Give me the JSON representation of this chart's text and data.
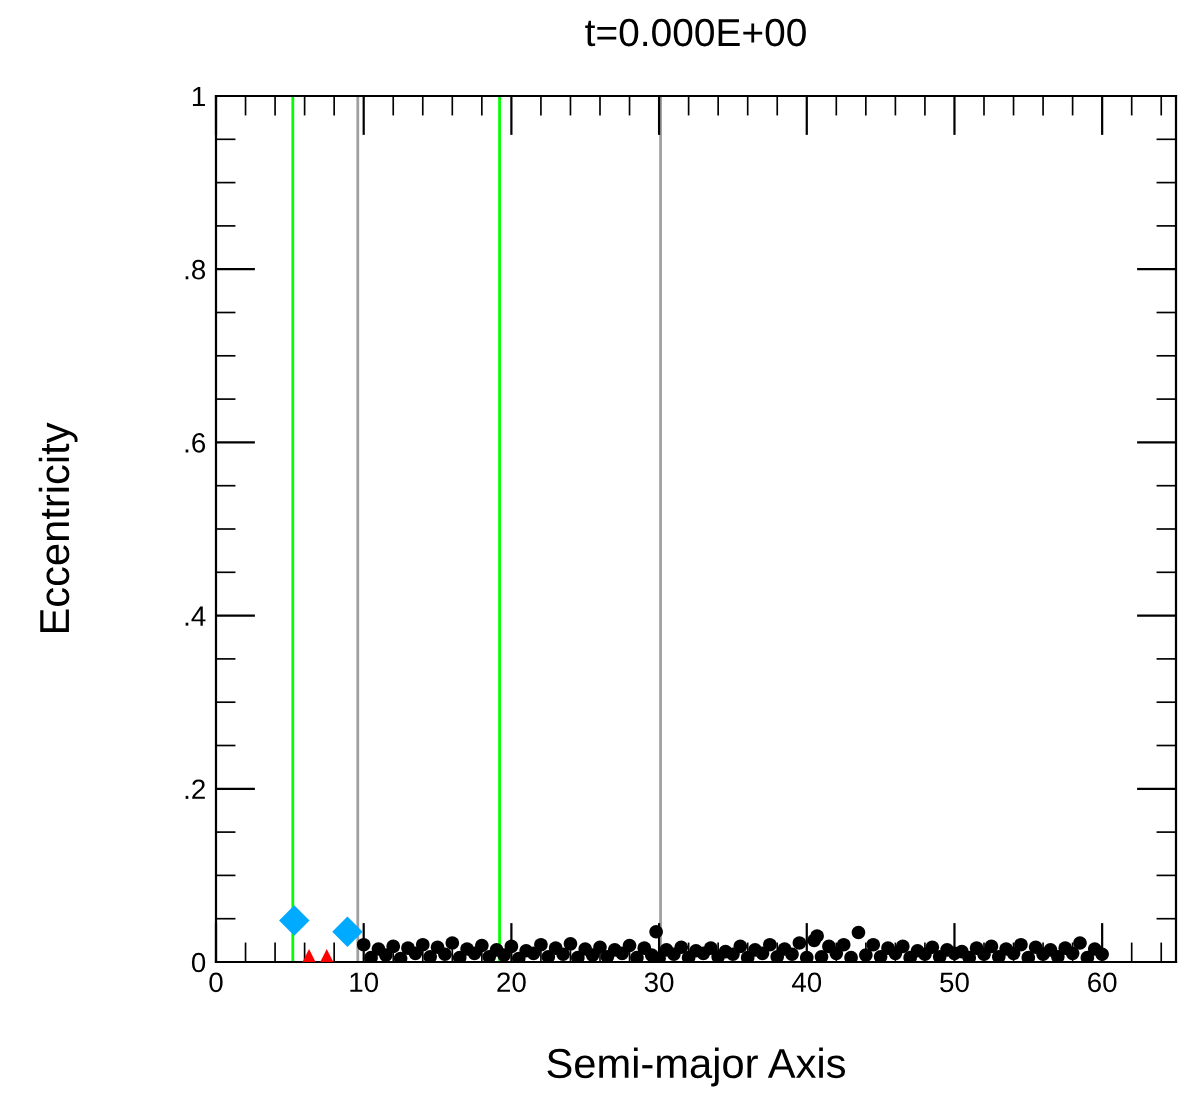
{
  "chart_data": {
    "type": "scatter",
    "title": "t=0.000E+00",
    "xlabel": "Semi-major Axis",
    "ylabel": "Eccentricity",
    "xlim": [
      0,
      65
    ],
    "ylim": [
      0,
      1
    ],
    "xticks": [
      0,
      {
        "value": 2,
        "label": null
      },
      {
        "value": 4,
        "label": null
      },
      {
        "value": 6,
        "label": null
      },
      {
        "value": 8,
        "label": null
      },
      10,
      {
        "value": 12,
        "label": null
      },
      {
        "value": 14,
        "label": null
      },
      {
        "value": 16,
        "label": null
      },
      {
        "value": 18,
        "label": null
      },
      20,
      {
        "value": 22,
        "label": null
      },
      {
        "value": 24,
        "label": null
      },
      {
        "value": 26,
        "label": null
      },
      {
        "value": 28,
        "label": null
      },
      30,
      {
        "value": 32,
        "label": null
      },
      {
        "value": 34,
        "label": null
      },
      {
        "value": 36,
        "label": null
      },
      {
        "value": 38,
        "label": null
      },
      40,
      {
        "value": 42,
        "label": null
      },
      {
        "value": 44,
        "label": null
      },
      {
        "value": 46,
        "label": null
      },
      {
        "value": 48,
        "label": null
      },
      50,
      {
        "value": 52,
        "label": null
      },
      {
        "value": 54,
        "label": null
      },
      {
        "value": 56,
        "label": null
      },
      {
        "value": 58,
        "label": null
      },
      60,
      {
        "value": 62,
        "label": null
      },
      {
        "value": 64,
        "label": null
      }
    ],
    "yticks": [
      0,
      {
        "value": 0.05,
        "label": null
      },
      {
        "value": 0.1,
        "label": null
      },
      {
        "value": 0.15,
        "label": null
      },
      {
        "value": 0.2,
        "label": ".2"
      },
      {
        "value": 0.25,
        "label": null
      },
      {
        "value": 0.3,
        "label": null
      },
      {
        "value": 0.35,
        "label": null
      },
      {
        "value": 0.4,
        "label": ".4"
      },
      {
        "value": 0.45,
        "label": null
      },
      {
        "value": 0.5,
        "label": null
      },
      {
        "value": 0.55,
        "label": null
      },
      {
        "value": 0.6,
        "label": ".6"
      },
      {
        "value": 0.65,
        "label": null
      },
      {
        "value": 0.7,
        "label": null
      },
      {
        "value": 0.75,
        "label": null
      },
      {
        "value": 0.8,
        "label": ".8"
      },
      {
        "value": 0.85,
        "label": null
      },
      {
        "value": 0.9,
        "label": null
      },
      {
        "value": 0.95,
        "label": null
      },
      1
    ],
    "grid": false,
    "ref_lines": [
      {
        "axis": "x",
        "value": 5.2,
        "color": "#00ff00"
      },
      {
        "axis": "x",
        "value": 9.6,
        "color": "#a0a0a0"
      },
      {
        "axis": "x",
        "value": 19.2,
        "color": "#00ff00"
      },
      {
        "axis": "x",
        "value": 30.1,
        "color": "#a0a0a0"
      }
    ],
    "series": [
      {
        "color": "#000000",
        "marker": "circle",
        "x": [
          10,
          10.5,
          11,
          11.5,
          12,
          12.5,
          13,
          13.5,
          14,
          14.5,
          15,
          15.5,
          16,
          16.5,
          17,
          17.5,
          18,
          18.5,
          19,
          19.5,
          20,
          20.5,
          21,
          21.5,
          22,
          22.5,
          23,
          23.5,
          24,
          24.5,
          25,
          25.5,
          26,
          26.5,
          27,
          27.5,
          28,
          28.5,
          29,
          29.5,
          29.8,
          30,
          30.5,
          31,
          31.5,
          32,
          32.5,
          33,
          33.5,
          34,
          34.5,
          35,
          35.5,
          36,
          36.5,
          37,
          37.5,
          38,
          38.5,
          39,
          39.5,
          40,
          40.5,
          40.7,
          41,
          41.5,
          42,
          42.5,
          43,
          43.5,
          44,
          44.5,
          45,
          45.5,
          46,
          46.5,
          47,
          47.5,
          48,
          48.5,
          49,
          49.5,
          50,
          50.5,
          51,
          51.5,
          52,
          52.5,
          53,
          53.5,
          54,
          54.5,
          55,
          55.5,
          56,
          56.5,
          57,
          57.5,
          58,
          58.5,
          59,
          59.5,
          60
        ],
        "values": [
          0.02,
          0.005,
          0.015,
          0.008,
          0.018,
          0.004,
          0.016,
          0.01,
          0.02,
          0.006,
          0.017,
          0.009,
          0.022,
          0.005,
          0.015,
          0.01,
          0.019,
          0.006,
          0.014,
          0.008,
          0.018,
          0.004,
          0.013,
          0.01,
          0.02,
          0.006,
          0.016,
          0.009,
          0.021,
          0.005,
          0.015,
          0.008,
          0.017,
          0.006,
          0.014,
          0.01,
          0.019,
          0.005,
          0.016,
          0.008,
          0.035,
          0.004,
          0.014,
          0.009,
          0.017,
          0.005,
          0.013,
          0.01,
          0.016,
          0.006,
          0.012,
          0.009,
          0.018,
          0.005,
          0.014,
          0.01,
          0.02,
          0.006,
          0.015,
          0.009,
          0.022,
          0.005,
          0.025,
          0.03,
          0.006,
          0.018,
          0.01,
          0.02,
          0.005,
          0.034,
          0.008,
          0.02,
          0.006,
          0.016,
          0.01,
          0.018,
          0.005,
          0.013,
          0.009,
          0.017,
          0.006,
          0.014,
          0.01,
          0.012,
          0.005,
          0.016,
          0.009,
          0.018,
          0.006,
          0.015,
          0.01,
          0.02,
          0.005,
          0.017,
          0.009,
          0.014,
          0.006,
          0.016,
          0.01,
          0.022,
          0.005,
          0.015,
          0.009
        ]
      },
      {
        "color": "#00aaff",
        "marker": "diamond",
        "x": [
          5.3,
          8.9
        ],
        "values": [
          0.048,
          0.035
        ]
      },
      {
        "color": "#ff0000",
        "marker": "triangle",
        "x": [
          6.3,
          7.5
        ],
        "values": [
          0.005,
          0.005
        ]
      }
    ]
  }
}
